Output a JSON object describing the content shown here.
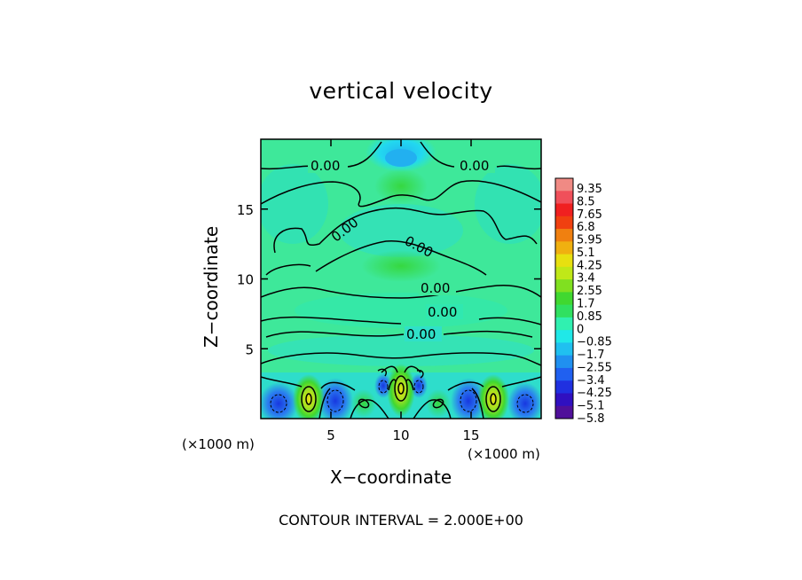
{
  "chart_data": {
    "type": "heatmap",
    "title": "vertical velocity",
    "xlabel": "X−coordinate",
    "ylabel": "Z−coordinate",
    "x_unit_labels": [
      "(×1000 m)",
      "(×1000 m)"
    ],
    "xlim": [
      0,
      20
    ],
    "ylim": [
      0,
      20
    ],
    "x_ticks": [
      5,
      10,
      15
    ],
    "y_ticks": [
      5,
      10,
      15
    ],
    "x_tick_labels": [
      "5",
      "10",
      "15"
    ],
    "y_tick_labels": [
      "5",
      "10",
      "15"
    ],
    "footer": "CONTOUR INTERVAL = 2.000E+00",
    "contour_labels": [
      "0.00",
      "0.00",
      "0.00",
      "0.00",
      "0.00",
      "0.00",
      "0.00"
    ],
    "colorbar": {
      "labels": [
        "9.35",
        "8.5",
        "7.65",
        "6.8",
        "5.95",
        "5.1",
        "4.25",
        "3.4",
        "2.55",
        "1.7",
        "0.85",
        "0",
        "−0.85",
        "−1.7",
        "−2.55",
        "−3.4",
        "−4.25",
        "−5.1",
        "−5.8"
      ],
      "colors": [
        "#f08a84",
        "#f0505a",
        "#f02020",
        "#f04010",
        "#f08010",
        "#f0b010",
        "#e8e010",
        "#c0e818",
        "#80e020",
        "#40d830",
        "#30e060",
        "#30f0b0",
        "#20e8e8",
        "#20c0f0",
        "#2090f0",
        "#2060f0",
        "#2030e0",
        "#3010c0",
        "#50109a"
      ]
    }
  }
}
